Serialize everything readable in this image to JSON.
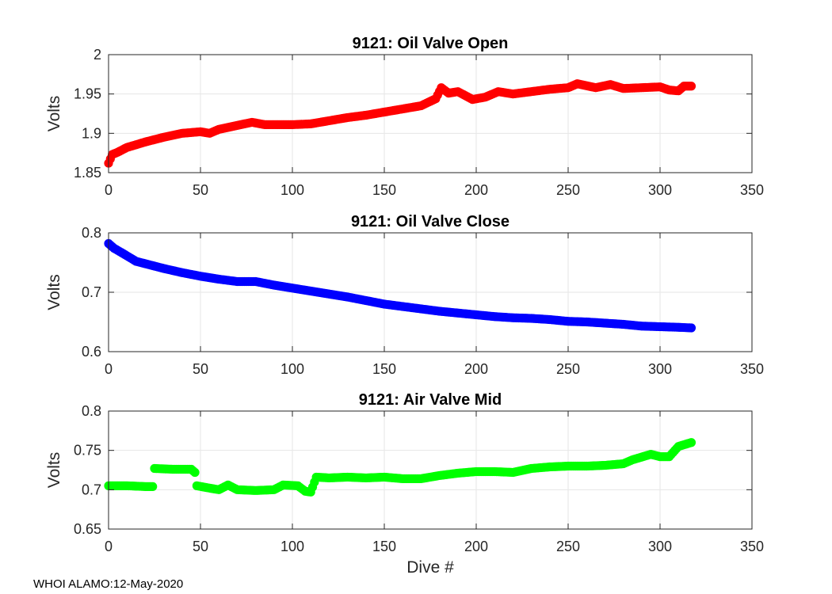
{
  "footer": "WHOI ALAMO:12-May-2020",
  "chart_data": [
    {
      "type": "scatter",
      "title": "9121: Oil Valve Open",
      "xlabel": "",
      "ylabel": "Volts",
      "color": "#ff0000",
      "xlim": [
        0,
        350
      ],
      "ylim": [
        1.85,
        2.0
      ],
      "xticks": [
        0,
        50,
        100,
        150,
        200,
        250,
        300,
        350
      ],
      "yticks": [
        1.85,
        1.9,
        1.95,
        2.0
      ],
      "ytick_labels": [
        "1.85",
        "1.9",
        "1.95",
        "2"
      ],
      "grid": true,
      "anchors": [
        [
          0,
          1.862
        ],
        [
          2,
          1.873
        ],
        [
          5,
          1.876
        ],
        [
          10,
          1.882
        ],
        [
          20,
          1.889
        ],
        [
          30,
          1.895
        ],
        [
          40,
          1.9
        ],
        [
          50,
          1.902
        ],
        [
          55,
          1.9
        ],
        [
          60,
          1.905
        ],
        [
          70,
          1.91
        ],
        [
          78,
          1.914
        ],
        [
          85,
          1.911
        ],
        [
          100,
          1.911
        ],
        [
          110,
          1.912
        ],
        [
          120,
          1.916
        ],
        [
          130,
          1.92
        ],
        [
          140,
          1.923
        ],
        [
          150,
          1.927
        ],
        [
          160,
          1.931
        ],
        [
          170,
          1.935
        ],
        [
          178,
          1.944
        ],
        [
          181,
          1.958
        ],
        [
          185,
          1.951
        ],
        [
          190,
          1.953
        ],
        [
          198,
          1.943
        ],
        [
          205,
          1.946
        ],
        [
          212,
          1.953
        ],
        [
          220,
          1.95
        ],
        [
          230,
          1.953
        ],
        [
          240,
          1.956
        ],
        [
          250,
          1.958
        ],
        [
          255,
          1.963
        ],
        [
          265,
          1.958
        ],
        [
          273,
          1.962
        ],
        [
          280,
          1.957
        ],
        [
          290,
          1.958
        ],
        [
          300,
          1.959
        ],
        [
          305,
          1.955
        ],
        [
          310,
          1.954
        ],
        [
          313,
          1.96
        ],
        [
          317,
          1.96
        ]
      ]
    },
    {
      "type": "scatter",
      "title": "9121: Oil Valve Close",
      "xlabel": "",
      "ylabel": "Volts",
      "color": "#0000ff",
      "xlim": [
        0,
        350
      ],
      "ylim": [
        0.6,
        0.8
      ],
      "xticks": [
        0,
        50,
        100,
        150,
        200,
        250,
        300,
        350
      ],
      "yticks": [
        0.6,
        0.7,
        0.8
      ],
      "ytick_labels": [
        "0.6",
        "0.7",
        "0.8"
      ],
      "grid": true,
      "anchors": [
        [
          0,
          0.782
        ],
        [
          3,
          0.774
        ],
        [
          8,
          0.765
        ],
        [
          15,
          0.752
        ],
        [
          20,
          0.748
        ],
        [
          30,
          0.74
        ],
        [
          40,
          0.733
        ],
        [
          50,
          0.727
        ],
        [
          60,
          0.722
        ],
        [
          70,
          0.718
        ],
        [
          80,
          0.718
        ],
        [
          90,
          0.712
        ],
        [
          100,
          0.707
        ],
        [
          110,
          0.702
        ],
        [
          120,
          0.697
        ],
        [
          130,
          0.692
        ],
        [
          140,
          0.686
        ],
        [
          150,
          0.68
        ],
        [
          160,
          0.676
        ],
        [
          170,
          0.672
        ],
        [
          180,
          0.668
        ],
        [
          190,
          0.665
        ],
        [
          200,
          0.662
        ],
        [
          210,
          0.659
        ],
        [
          220,
          0.657
        ],
        [
          230,
          0.656
        ],
        [
          240,
          0.654
        ],
        [
          250,
          0.651
        ],
        [
          260,
          0.65
        ],
        [
          270,
          0.648
        ],
        [
          280,
          0.646
        ],
        [
          290,
          0.643
        ],
        [
          300,
          0.642
        ],
        [
          310,
          0.641
        ],
        [
          317,
          0.64
        ]
      ]
    },
    {
      "type": "scatter",
      "title": "9121: Air Valve Mid",
      "xlabel": "Dive #",
      "ylabel": "Volts",
      "color": "#00ff00",
      "xlim": [
        0,
        350
      ],
      "ylim": [
        0.65,
        0.8
      ],
      "xticks": [
        0,
        50,
        100,
        150,
        200,
        250,
        300,
        350
      ],
      "yticks": [
        0.65,
        0.7,
        0.75,
        0.8
      ],
      "ytick_labels": [
        "0.65",
        "0.7",
        "0.75",
        "0.8"
      ],
      "grid": true,
      "anchors": [
        [
          0,
          0.705
        ],
        [
          10,
          0.705
        ],
        [
          20,
          0.704
        ],
        [
          24,
          0.704
        ],
        [
          25,
          0.727
        ],
        [
          35,
          0.726
        ],
        [
          45,
          0.726
        ],
        [
          47,
          0.722
        ],
        [
          48,
          0.705
        ],
        [
          55,
          0.702
        ],
        [
          60,
          0.7
        ],
        [
          65,
          0.706
        ],
        [
          70,
          0.7
        ],
        [
          80,
          0.699
        ],
        [
          90,
          0.7
        ],
        [
          95,
          0.706
        ],
        [
          103,
          0.705
        ],
        [
          107,
          0.698
        ],
        [
          110,
          0.697
        ],
        [
          113,
          0.716
        ],
        [
          120,
          0.715
        ],
        [
          130,
          0.716
        ],
        [
          140,
          0.715
        ],
        [
          150,
          0.716
        ],
        [
          160,
          0.714
        ],
        [
          170,
          0.714
        ],
        [
          180,
          0.718
        ],
        [
          190,
          0.721
        ],
        [
          200,
          0.723
        ],
        [
          210,
          0.723
        ],
        [
          220,
          0.722
        ],
        [
          230,
          0.727
        ],
        [
          240,
          0.729
        ],
        [
          250,
          0.73
        ],
        [
          260,
          0.73
        ],
        [
          270,
          0.731
        ],
        [
          280,
          0.733
        ],
        [
          285,
          0.738
        ],
        [
          295,
          0.745
        ],
        [
          300,
          0.742
        ],
        [
          305,
          0.742
        ],
        [
          310,
          0.755
        ],
        [
          317,
          0.76
        ]
      ]
    }
  ]
}
